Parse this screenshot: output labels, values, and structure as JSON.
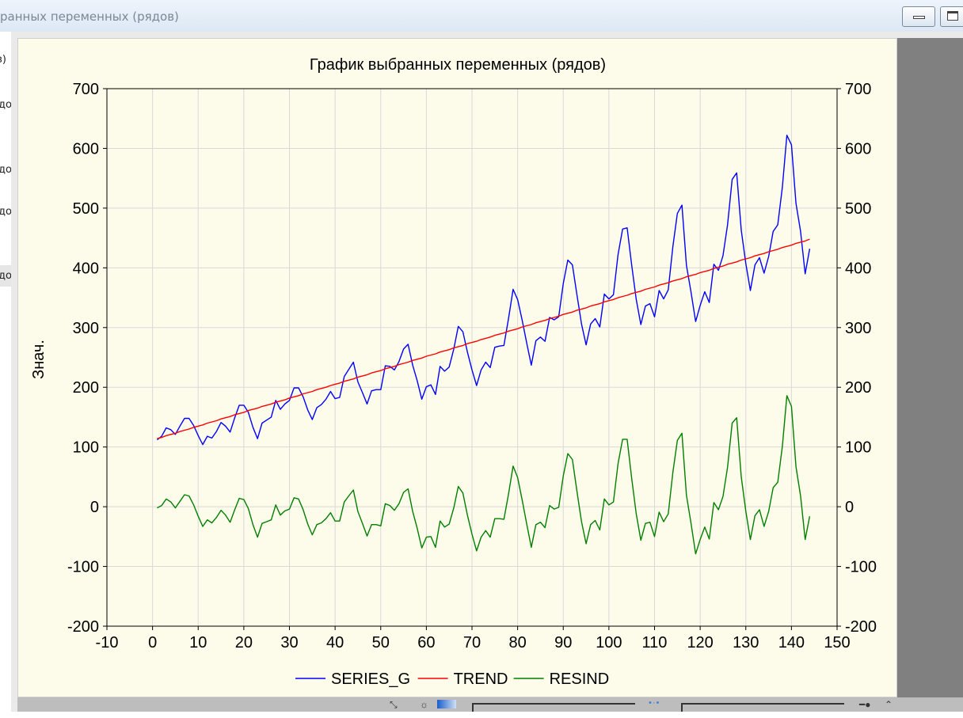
{
  "window": {
    "title": "ранных переменных (рядов)"
  },
  "left_panel": {
    "fragments": [
      "з)",
      "до",
      "до",
      "до",
      "до"
    ]
  },
  "chart_data": {
    "type": "line",
    "title": "График выбранных переменных (рядов)",
    "xlabel": "",
    "ylabel": "Знач.",
    "xlim": [
      -10,
      150
    ],
    "ylim": [
      -200,
      700
    ],
    "x_ticks": [
      "-10",
      "0",
      "10",
      "20",
      "30",
      "40",
      "50",
      "60",
      "70",
      "80",
      "90",
      "100",
      "110",
      "120",
      "130",
      "140",
      "150"
    ],
    "y_ticks": [
      "700",
      "600",
      "500",
      "400",
      "300",
      "200",
      "100",
      "0",
      "-100",
      "-200"
    ],
    "grid": true,
    "legend_position": "bottom",
    "x": [
      1,
      2,
      3,
      4,
      5,
      6,
      7,
      8,
      9,
      10,
      11,
      12,
      13,
      14,
      15,
      16,
      17,
      18,
      19,
      20,
      21,
      22,
      23,
      24,
      25,
      26,
      27,
      28,
      29,
      30,
      31,
      32,
      33,
      34,
      35,
      36,
      37,
      38,
      39,
      40,
      41,
      42,
      43,
      44,
      45,
      46,
      47,
      48,
      49,
      50,
      51,
      52,
      53,
      54,
      55,
      56,
      57,
      58,
      59,
      60,
      61,
      62,
      63,
      64,
      65,
      66,
      67,
      68,
      69,
      70,
      71,
      72,
      73,
      74,
      75,
      76,
      77,
      78,
      79,
      80,
      81,
      82,
      83,
      84,
      85,
      86,
      87,
      88,
      89,
      90,
      91,
      92,
      93,
      94,
      95,
      96,
      97,
      98,
      99,
      100,
      101,
      102,
      103,
      104,
      105,
      106,
      107,
      108,
      109,
      110,
      111,
      112,
      113,
      114,
      115,
      116,
      117,
      118,
      119,
      120,
      121,
      122,
      123,
      124,
      125,
      126,
      127,
      128,
      129,
      130,
      131,
      132,
      133,
      134,
      135,
      136,
      137,
      138,
      139,
      140,
      141,
      142,
      143,
      144
    ],
    "series": [
      {
        "name": "SERIES_G",
        "color": "#0000ff",
        "values": [
          112,
          118,
          132,
          129,
          121,
          135,
          148,
          148,
          136,
          119,
          104,
          118,
          115,
          126,
          141,
          135,
          125,
          149,
          170,
          170,
          158,
          133,
          114,
          140,
          145,
          150,
          178,
          163,
          172,
          178,
          199,
          199,
          184,
          162,
          146,
          166,
          171,
          180,
          193,
          181,
          183,
          218,
          230,
          242,
          209,
          191,
          172,
          194,
          196,
          196,
          236,
          235,
          229,
          243,
          264,
          272,
          237,
          211,
          180,
          201,
          204,
          188,
          235,
          227,
          234,
          264,
          302,
          293,
          259,
          229,
          203,
          229,
          242,
          233,
          267,
          269,
          270,
          315,
          364,
          347,
          312,
          274,
          237,
          278,
          284,
          277,
          317,
          313,
          318,
          374,
          413,
          405,
          355,
          306,
          271,
          306,
          315,
          301,
          356,
          348,
          355,
          422,
          465,
          467,
          404,
          347,
          305,
          336,
          340,
          318,
          362,
          348,
          363,
          435,
          491,
          505,
          404,
          359,
          310,
          337,
          360,
          342,
          406,
          396,
          420,
          472,
          548,
          559,
          463,
          407,
          362,
          405,
          417,
          391,
          419,
          461,
          472,
          535,
          622,
          606,
          508,
          461,
          390,
          432
        ]
      },
      {
        "name": "TREND",
        "color": "#ff0000",
        "values": [
          114,
          116,
          119,
          121,
          123,
          126,
          128,
          130,
          133,
          135,
          137,
          140,
          142,
          144,
          147,
          149,
          151,
          154,
          156,
          158,
          161,
          163,
          165,
          168,
          170,
          172,
          175,
          177,
          179,
          182,
          184,
          186,
          189,
          191,
          193,
          196,
          198,
          200,
          203,
          205,
          207,
          210,
          212,
          214,
          217,
          219,
          221,
          224,
          226,
          228,
          231,
          233,
          235,
          238,
          240,
          242,
          245,
          247,
          249,
          252,
          254,
          256,
          259,
          261,
          263,
          266,
          268,
          270,
          273,
          275,
          277,
          280,
          282,
          284,
          287,
          289,
          291,
          294,
          296,
          298,
          301,
          303,
          305,
          308,
          310,
          312,
          315,
          317,
          319,
          322,
          324,
          326,
          329,
          331,
          333,
          336,
          338,
          340,
          343,
          345,
          347,
          350,
          352,
          354,
          357,
          359,
          361,
          364,
          366,
          368,
          371,
          373,
          375,
          378,
          380,
          382,
          385,
          387,
          389,
          392,
          394,
          396,
          399,
          401,
          403,
          406,
          408,
          410,
          413,
          415,
          417,
          420,
          422,
          424,
          427,
          429,
          431,
          434,
          436,
          438,
          441,
          443,
          445,
          448
        ]
      },
      {
        "name": "RESIND",
        "color": "#008000",
        "values": [
          -2,
          2,
          13,
          8,
          -2,
          9,
          20,
          18,
          3,
          -16,
          -33,
          -22,
          -27,
          -18,
          -6,
          -14,
          -26,
          -5,
          14,
          12,
          -3,
          -30,
          -51,
          -28,
          -25,
          -22,
          3,
          -14,
          -7,
          -4,
          15,
          13,
          -5,
          -29,
          -47,
          -30,
          -27,
          -20,
          -10,
          -24,
          -24,
          8,
          18,
          28,
          -8,
          -28,
          -49,
          -30,
          -30,
          -32,
          5,
          2,
          -6,
          5,
          24,
          30,
          -8,
          -36,
          -69,
          -51,
          -50,
          -68,
          -24,
          -34,
          -29,
          -2,
          34,
          23,
          -14,
          -46,
          -74,
          -51,
          -40,
          -51,
          -20,
          -20,
          -21,
          21,
          68,
          49,
          11,
          -29,
          -68,
          -30,
          -26,
          -35,
          2,
          -4,
          -1,
          52,
          89,
          79,
          26,
          -25,
          -62,
          -30,
          -23,
          -39,
          13,
          3,
          8,
          72,
          113,
          113,
          47,
          -12,
          -56,
          -28,
          -26,
          -50,
          -9,
          -25,
          -12,
          57,
          111,
          123,
          19,
          -28,
          -79,
          -55,
          -34,
          -54,
          7,
          -5,
          17,
          66,
          140,
          149,
          50,
          -8,
          -55,
          -15,
          -5,
          -33,
          -8,
          32,
          41,
          101,
          186,
          168,
          67,
          18,
          -55,
          -16
        ]
      }
    ]
  }
}
